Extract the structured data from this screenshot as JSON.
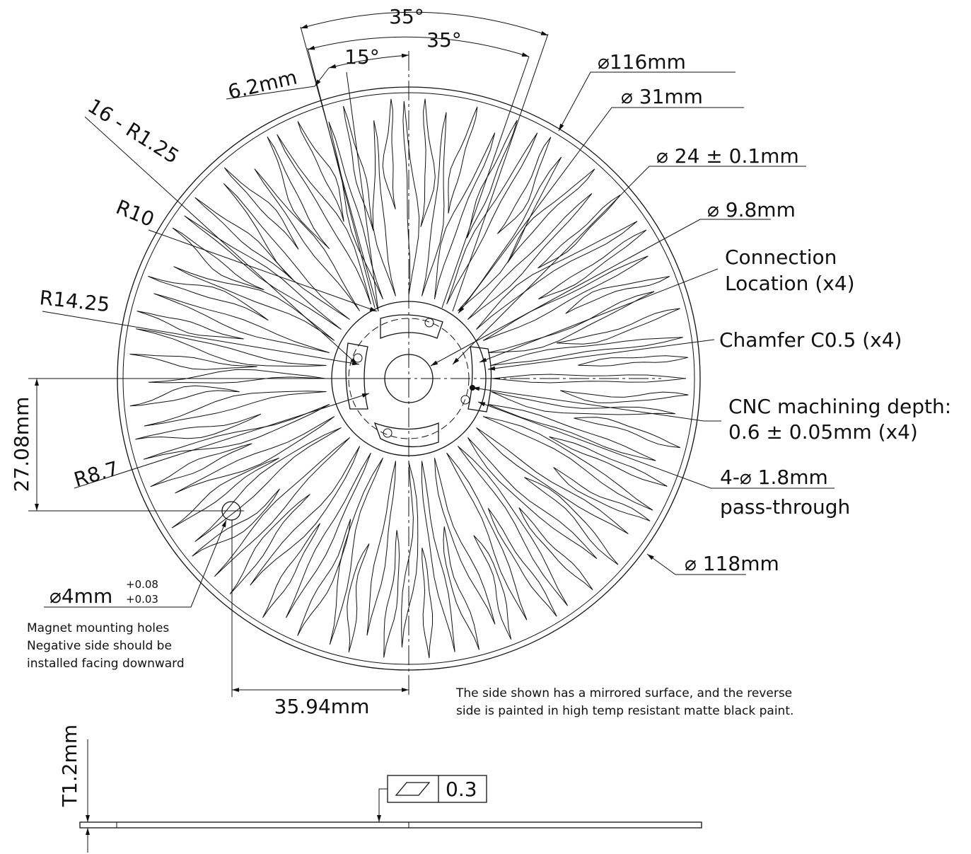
{
  "dimensions": {
    "angle_outer": "35°",
    "angle_inner": "35°",
    "angle_small": "15°",
    "width_slot": "6.2mm",
    "fillets": "16 - R1.25",
    "radius_10": "R10",
    "radius_14_25": "R14.25",
    "radius_8_7": "R8.7",
    "height_offset": "27.08mm",
    "width_offset": "35.94mm",
    "thickness": "T1.2mm"
  },
  "callouts": {
    "dia_116": "⌀116mm",
    "dia_31": "⌀ 31mm",
    "dia_24": "⌀ 24 ± 0.1mm",
    "dia_9_8": "⌀ 9.8mm",
    "connection": [
      "Connection",
      "Location (x4)"
    ],
    "chamfer": "Chamfer C0.5 (x4)",
    "cnc_depth": [
      "CNC machining depth:",
      "0.6 ± 0.05mm (x4)"
    ],
    "pass_through": [
      "4-⌀ 1.8mm",
      "pass-through"
    ],
    "dia_118": "⌀ 118mm",
    "magnet_hole": {
      "size": "⌀4mm",
      "upper_tol": "+0.08",
      "lower_tol": "+0.03",
      "note": [
        "Magnet mounting holes",
        "Negative side should be",
        "installed facing downward"
      ]
    }
  },
  "notes": [
    "The side shown has a mirrored surface, and the reverse",
    "side is painted in high temp resistant matte black paint."
  ],
  "flatness": "0.3"
}
